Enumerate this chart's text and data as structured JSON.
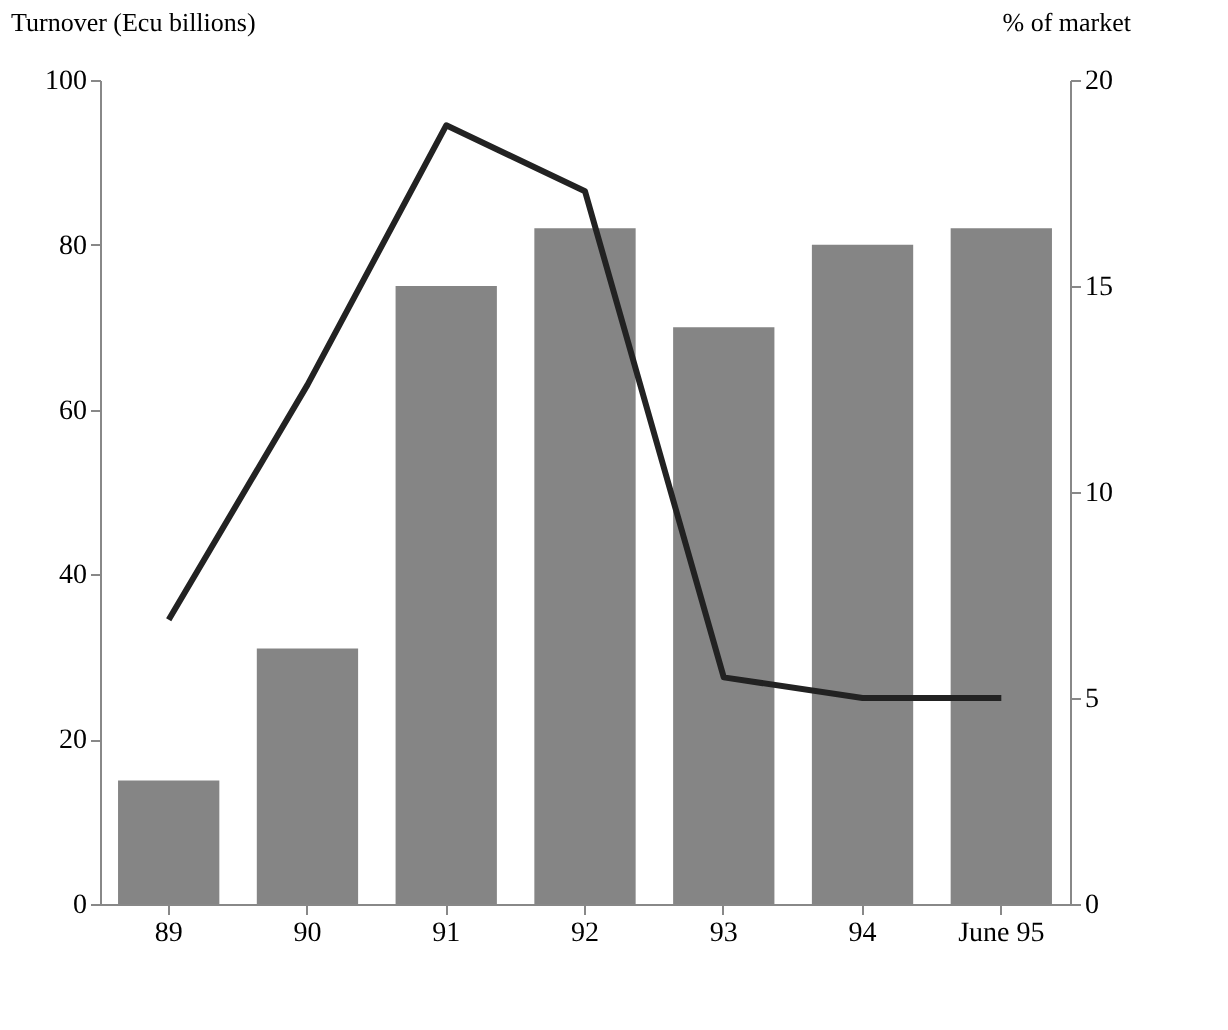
{
  "chart_data": {
    "type": "bar",
    "ylabel": "Turnover (Ecu billions)",
    "y2label": "% of market",
    "categories": [
      "89",
      "90",
      "91",
      "92",
      "93",
      "94",
      "June 95"
    ],
    "series": [
      {
        "color": "#858585",
        "values": [
          15,
          31,
          75,
          82,
          70,
          80,
          82
        ]
      },
      {
        "type": "line",
        "axis": "y2",
        "color": "#222222",
        "values": [
          6.9,
          12.6,
          18.9,
          17.3,
          5.5,
          5.0,
          5.0
        ]
      }
    ],
    "ylim": [
      0,
      100
    ],
    "yticks": [
      0,
      20,
      40,
      60,
      80,
      100
    ],
    "y2lim": [
      0,
      20
    ],
    "y2ticks": [
      0,
      5,
      10,
      15,
      20
    ],
    "grid": false,
    "line_style": "solid",
    "marker": "none"
  }
}
